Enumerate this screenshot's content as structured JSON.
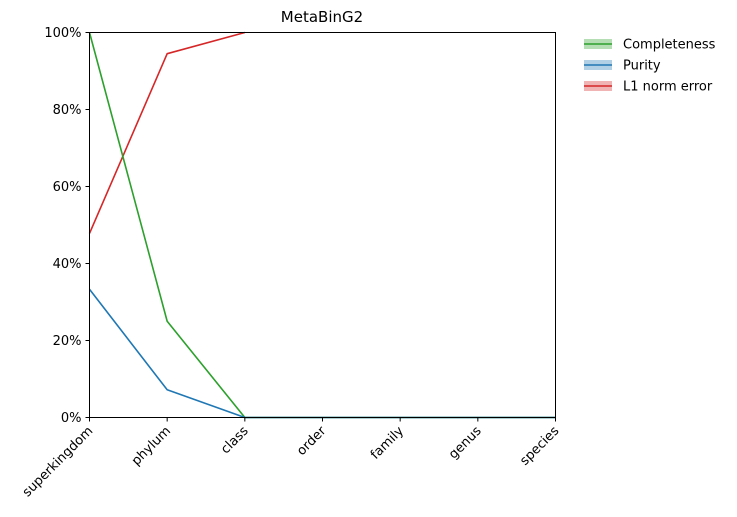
{
  "chart_data": {
    "type": "line",
    "title": "MetaBinG2",
    "categories": [
      "superkingdom",
      "phylum",
      "class",
      "order",
      "family",
      "genus",
      "species"
    ],
    "ylim": [
      0,
      100
    ],
    "y_ticks": [
      "0%",
      "20%",
      "40%",
      "60%",
      "80%",
      "100%"
    ],
    "y_tick_values": [
      0,
      20,
      40,
      60,
      80,
      100
    ],
    "grid": false,
    "legend_position": "outside-top-right",
    "series": [
      {
        "name": "Completeness",
        "color": "#2ca02c",
        "values": [
          100,
          25,
          0,
          0,
          0,
          0,
          0
        ]
      },
      {
        "name": "Purity",
        "color": "#1f77b4",
        "values": [
          33.3,
          7.2,
          0,
          0,
          0,
          0,
          0
        ]
      },
      {
        "name": "L1 norm error",
        "color": "#d62728",
        "values": [
          47.8,
          94.5,
          100,
          null,
          null,
          null,
          null
        ]
      }
    ]
  }
}
